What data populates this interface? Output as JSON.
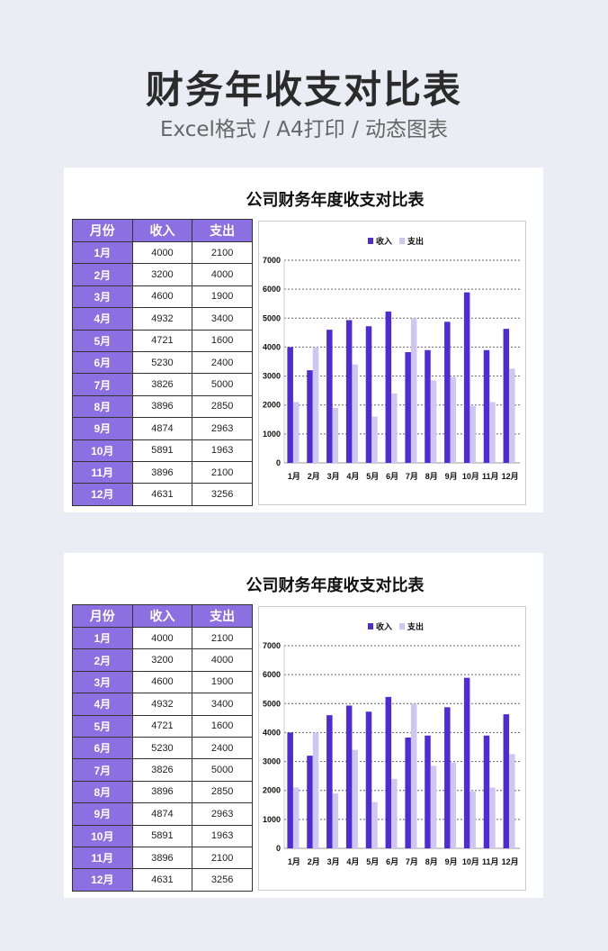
{
  "header": {
    "title": "财务年收支对比表",
    "subtitle": "Excel格式 / A4打印 / 动态图表"
  },
  "panel": {
    "title": "公司财务年度收支对比表",
    "table": {
      "headers": [
        "月份",
        "收入",
        "支出"
      ]
    }
  },
  "chart_data": {
    "type": "bar",
    "categories": [
      "1月",
      "2月",
      "3月",
      "4月",
      "5月",
      "6月",
      "7月",
      "8月",
      "9月",
      "10月",
      "11月",
      "12月"
    ],
    "series": [
      {
        "name": "收入",
        "color": "#4f2bd3",
        "values": [
          4000,
          3200,
          4600,
          4932,
          4721,
          5230,
          3826,
          3896,
          4874,
          5891,
          3896,
          4631
        ]
      },
      {
        "name": "支出",
        "color": "#cfc6f1",
        "values": [
          2100,
          4000,
          1900,
          3400,
          1600,
          2400,
          5000,
          2850,
          2963,
          1963,
          2100,
          3256
        ]
      }
    ],
    "ylim": [
      0,
      7000
    ],
    "yticks": [
      0,
      1000,
      2000,
      3000,
      4000,
      5000,
      6000,
      7000
    ],
    "grid": true,
    "legend": "top"
  }
}
